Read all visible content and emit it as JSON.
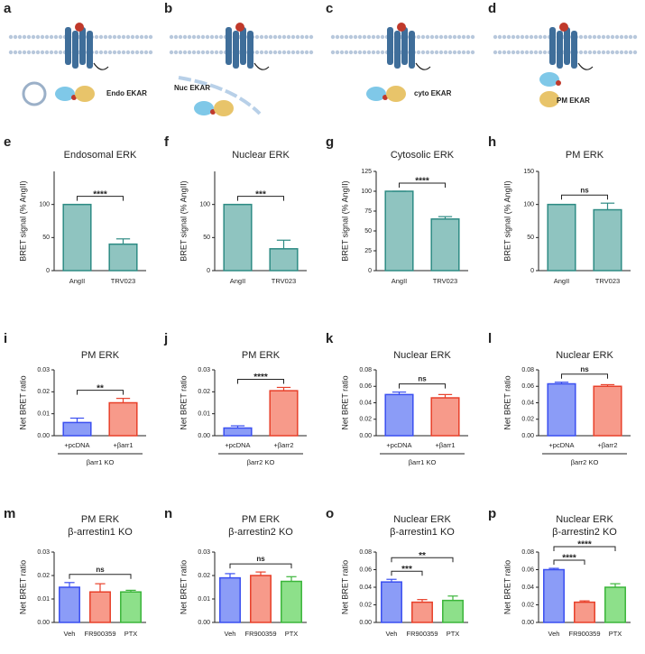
{
  "diagrams": [
    {
      "panel": "a",
      "label": "Endo EKAR"
    },
    {
      "panel": "b",
      "label": "Nuc EKAR"
    },
    {
      "panel": "c",
      "label": "cyto EKAR"
    },
    {
      "panel": "d",
      "label": "PM EKAR"
    }
  ],
  "chart_data": [
    {
      "type": "bar",
      "panel": "e",
      "title": "Endosomal ERK",
      "ylabel": "BRET signal (% AngII)",
      "categories": [
        "AngII",
        "TRV023"
      ],
      "values": [
        100,
        40
      ],
      "errors": [
        0,
        8
      ],
      "colors": [
        "#8fc4c0",
        "#8fc4c0"
      ],
      "edge_colors": [
        "#2e8b84",
        "#2e8b84"
      ],
      "ylim": [
        0,
        150
      ],
      "yticks": [
        0,
        50,
        100
      ],
      "significance": [
        {
          "between": [
            0,
            1
          ],
          "label": "****"
        }
      ]
    },
    {
      "type": "bar",
      "panel": "f",
      "title": "Nuclear ERK",
      "ylabel": "BRET signal (% AngII)",
      "categories": [
        "AngII",
        "TRV023"
      ],
      "values": [
        100,
        33
      ],
      "errors": [
        0,
        13
      ],
      "colors": [
        "#8fc4c0",
        "#8fc4c0"
      ],
      "edge_colors": [
        "#2e8b84",
        "#2e8b84"
      ],
      "ylim": [
        0,
        150
      ],
      "yticks": [
        0,
        50,
        100
      ],
      "significance": [
        {
          "between": [
            0,
            1
          ],
          "label": "***"
        }
      ]
    },
    {
      "type": "bar",
      "panel": "g",
      "title": "Cytosolic ERK",
      "ylabel": "BRET signal (% AngII)",
      "categories": [
        "AngII",
        "TRV023"
      ],
      "values": [
        100,
        65
      ],
      "errors": [
        0,
        3
      ],
      "colors": [
        "#8fc4c0",
        "#8fc4c0"
      ],
      "edge_colors": [
        "#2e8b84",
        "#2e8b84"
      ],
      "ylim": [
        0,
        125
      ],
      "yticks": [
        0,
        25,
        50,
        75,
        100,
        125
      ],
      "significance": [
        {
          "between": [
            0,
            1
          ],
          "label": "****"
        }
      ]
    },
    {
      "type": "bar",
      "panel": "h",
      "title": "PM ERK",
      "ylabel": "BRET signal (% AngII)",
      "categories": [
        "AngII",
        "TRV023"
      ],
      "values": [
        100,
        92
      ],
      "errors": [
        0,
        10
      ],
      "colors": [
        "#8fc4c0",
        "#8fc4c0"
      ],
      "edge_colors": [
        "#2e8b84",
        "#2e8b84"
      ],
      "ylim": [
        0,
        150
      ],
      "yticks": [
        0,
        50,
        100,
        150
      ],
      "significance": [
        {
          "between": [
            0,
            1
          ],
          "label": "ns"
        }
      ]
    },
    {
      "type": "bar",
      "panel": "i",
      "title": "PM ERK",
      "ylabel": "Net BRET ratio",
      "categories": [
        "+pcDNA",
        "+βarr1"
      ],
      "values": [
        0.006,
        0.015
      ],
      "errors": [
        0.002,
        0.002
      ],
      "colors": [
        "#8b9cf7",
        "#f79a8a"
      ],
      "edge_colors": [
        "#3a4ff0",
        "#e8402a"
      ],
      "ylim": [
        0,
        0.03
      ],
      "yticks": [
        {
          "value": 0,
          "label": "0.00"
        },
        0.01,
        0.02,
        0.03
      ],
      "significance": [
        {
          "between": [
            0,
            1
          ],
          "label": "**"
        }
      ],
      "group": "βarr1 KO"
    },
    {
      "type": "bar",
      "panel": "j",
      "title": "PM ERK",
      "ylabel": "Net BRET ratio",
      "categories": [
        "+pcDNA",
        "+βarr2"
      ],
      "values": [
        0.0035,
        0.0205
      ],
      "errors": [
        0.001,
        0.0015
      ],
      "colors": [
        "#8b9cf7",
        "#f79a8a"
      ],
      "edge_colors": [
        "#3a4ff0",
        "#e8402a"
      ],
      "ylim": [
        0,
        0.03
      ],
      "yticks": [
        {
          "value": 0,
          "label": "0.00"
        },
        0.01,
        0.02,
        0.03
      ],
      "significance": [
        {
          "between": [
            0,
            1
          ],
          "label": "****"
        }
      ],
      "group": "βarr2 KO"
    },
    {
      "type": "bar",
      "panel": "k",
      "title": "Nuclear ERK",
      "ylabel": "Net BRET ratio",
      "categories": [
        "+pcDNA",
        "+βarr1"
      ],
      "values": [
        0.05,
        0.046
      ],
      "errors": [
        0.003,
        0.004
      ],
      "colors": [
        "#8b9cf7",
        "#f79a8a"
      ],
      "edge_colors": [
        "#3a4ff0",
        "#e8402a"
      ],
      "ylim": [
        0,
        0.08
      ],
      "yticks": [
        {
          "value": 0,
          "label": "0.00"
        },
        0.02,
        0.04,
        0.06,
        0.08
      ],
      "significance": [
        {
          "between": [
            0,
            1
          ],
          "label": "ns"
        }
      ],
      "group": "βarr1 KO"
    },
    {
      "type": "bar",
      "panel": "l",
      "title": "Nuclear ERK",
      "ylabel": "Net BRET ratio",
      "categories": [
        "+pcDNA",
        "+βarr2"
      ],
      "values": [
        0.063,
        0.06
      ],
      "errors": [
        0.002,
        0.002
      ],
      "colors": [
        "#8b9cf7",
        "#f79a8a"
      ],
      "edge_colors": [
        "#3a4ff0",
        "#e8402a"
      ],
      "ylim": [
        0,
        0.08
      ],
      "yticks": [
        {
          "value": 0,
          "label": "0.00"
        },
        0.02,
        0.04,
        0.06,
        0.08
      ],
      "significance": [
        {
          "between": [
            0,
            1
          ],
          "label": "ns"
        }
      ],
      "group": "βarr2 KO"
    },
    {
      "type": "bar",
      "panel": "m",
      "title": "PM ERK",
      "subtitle": "β-arrestin1 KO",
      "ylabel": "Net BRET ratio",
      "categories": [
        "Veh",
        "FR900359",
        "PTX"
      ],
      "values": [
        0.015,
        0.013,
        0.013
      ],
      "errors": [
        0.002,
        0.0035,
        0.0007
      ],
      "colors": [
        "#8b9cf7",
        "#f79a8a",
        "#8de08a"
      ],
      "edge_colors": [
        "#3a4ff0",
        "#e8402a",
        "#3bb53a"
      ],
      "ylim": [
        0,
        0.03
      ],
      "yticks": [
        {
          "value": 0,
          "label": "0.00"
        },
        0.01,
        0.02,
        0.03
      ],
      "significance": [
        {
          "between": [
            0,
            2
          ],
          "label": "ns"
        }
      ]
    },
    {
      "type": "bar",
      "panel": "n",
      "title": "PM ERK",
      "subtitle": "β-arrestin2 KO",
      "ylabel": "Net BRET ratio",
      "categories": [
        "Veh",
        "FR900359",
        "PTX"
      ],
      "values": [
        0.019,
        0.02,
        0.0175
      ],
      "errors": [
        0.0018,
        0.0015,
        0.002
      ],
      "colors": [
        "#8b9cf7",
        "#f79a8a",
        "#8de08a"
      ],
      "edge_colors": [
        "#3a4ff0",
        "#e8402a",
        "#3bb53a"
      ],
      "ylim": [
        0,
        0.03
      ],
      "yticks": [
        {
          "value": 0,
          "label": "0.00"
        },
        0.01,
        0.02,
        0.03
      ],
      "significance": [
        {
          "between": [
            0,
            2
          ],
          "label": "ns"
        }
      ]
    },
    {
      "type": "bar",
      "panel": "o",
      "title": "Nuclear ERK",
      "subtitle": "β-arrestin1 KO",
      "ylabel": "Net BRET ratio",
      "categories": [
        "Veh",
        "FR900359",
        "PTX"
      ],
      "values": [
        0.046,
        0.023,
        0.025
      ],
      "errors": [
        0.003,
        0.003,
        0.005
      ],
      "colors": [
        "#8b9cf7",
        "#f79a8a",
        "#8de08a"
      ],
      "edge_colors": [
        "#3a4ff0",
        "#e8402a",
        "#3bb53a"
      ],
      "ylim": [
        0,
        0.08
      ],
      "yticks": [
        {
          "value": 0,
          "label": "0.00"
        },
        0.02,
        0.04,
        0.06,
        0.08
      ],
      "significance": [
        {
          "between": [
            0,
            1
          ],
          "label": "***"
        },
        {
          "between": [
            0,
            2
          ],
          "label": "**"
        }
      ]
    },
    {
      "type": "bar",
      "panel": "p",
      "title": "Nuclear ERK",
      "subtitle": "β-arrestin2 KO",
      "ylabel": "Net BRET ratio",
      "categories": [
        "Veh",
        "FR900359",
        "PTX"
      ],
      "values": [
        0.06,
        0.023,
        0.04
      ],
      "errors": [
        0.0015,
        0.0015,
        0.004
      ],
      "colors": [
        "#8b9cf7",
        "#f79a8a",
        "#8de08a"
      ],
      "edge_colors": [
        "#3a4ff0",
        "#e8402a",
        "#3bb53a"
      ],
      "ylim": [
        0,
        0.08
      ],
      "yticks": [
        {
          "value": 0,
          "label": "0.00"
        },
        0.02,
        0.04,
        0.06,
        0.08
      ],
      "significance": [
        {
          "between": [
            0,
            1
          ],
          "label": "****"
        },
        {
          "between": [
            0,
            2
          ],
          "label": "****"
        }
      ]
    }
  ]
}
